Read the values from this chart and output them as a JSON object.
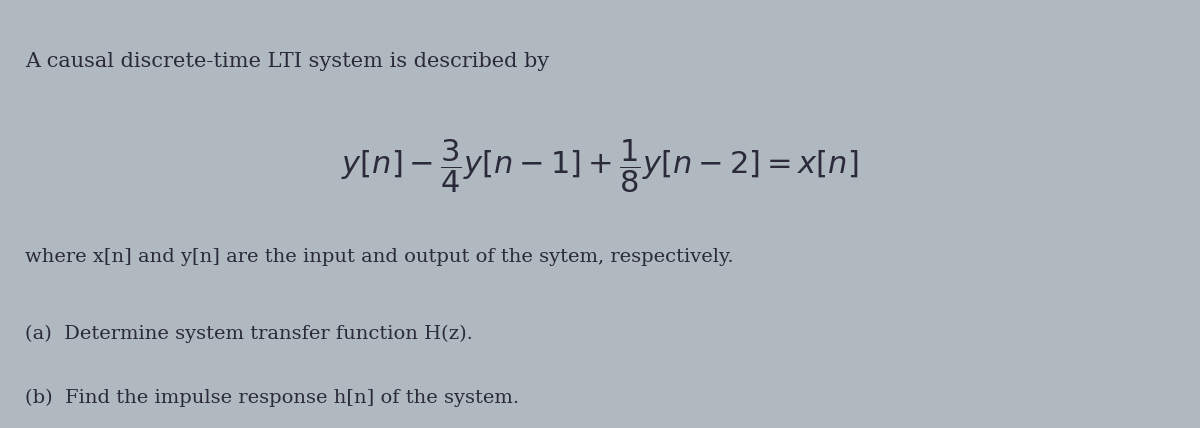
{
  "bg_color": "#b0b8c0",
  "text_color": "#2a2a3a",
  "figsize": [
    12.0,
    4.28
  ],
  "dpi": 100,
  "line1": "A causal discrete-time LTI system is described by",
  "equation": "$y[n] - \\dfrac{3}{4}y[n-1] + \\dfrac{1}{8}y[n-2] = x[n]$",
  "line3": "where x[n] and y[n] are the input and output of the sytem, respectively.",
  "line4a": "(a)  Determine system transfer function H(z).",
  "line4b": "(b)  Find the impulse response h[n] of the system."
}
